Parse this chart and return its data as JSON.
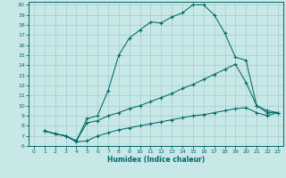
{
  "xlabel": "Humidex (Indice chaleur)",
  "background_color": "#c8e8e8",
  "grid_color": "#aacece",
  "line_color": "#006868",
  "xlim": [
    -0.5,
    23.5
  ],
  "ylim": [
    6,
    20.3
  ],
  "xticks": [
    0,
    1,
    2,
    3,
    4,
    5,
    6,
    7,
    8,
    9,
    10,
    11,
    12,
    13,
    14,
    15,
    16,
    17,
    18,
    19,
    20,
    21,
    22,
    23
  ],
  "yticks": [
    6,
    7,
    8,
    9,
    10,
    11,
    12,
    13,
    14,
    15,
    16,
    17,
    18,
    19,
    20
  ],
  "line1_x": [
    1,
    2,
    3,
    4,
    5,
    6,
    7,
    8,
    9,
    10,
    11,
    12,
    13,
    14,
    15,
    16,
    17,
    18,
    19,
    20,
    21,
    22,
    23
  ],
  "line1_y": [
    7.5,
    7.2,
    7.0,
    6.5,
    8.7,
    9.0,
    11.5,
    15.0,
    16.7,
    17.5,
    18.3,
    18.2,
    18.8,
    19.2,
    20.0,
    20.0,
    19.0,
    17.2,
    14.8,
    14.5,
    10.0,
    9.5,
    9.3
  ],
  "line2_x": [
    1,
    2,
    3,
    4,
    5,
    6,
    7,
    8,
    9,
    10,
    11,
    12,
    13,
    14,
    15,
    16,
    17,
    18,
    19,
    20,
    21,
    22,
    23
  ],
  "line2_y": [
    7.5,
    7.2,
    7.0,
    6.5,
    8.3,
    8.5,
    9.0,
    9.3,
    9.7,
    10.0,
    10.4,
    10.8,
    11.2,
    11.7,
    12.1,
    12.6,
    13.1,
    13.6,
    14.1,
    12.3,
    10.0,
    9.3,
    9.3
  ],
  "line3_x": [
    1,
    2,
    3,
    4,
    5,
    6,
    7,
    8,
    9,
    10,
    11,
    12,
    13,
    14,
    15,
    16,
    17,
    18,
    19,
    20,
    21,
    22,
    23
  ],
  "line3_y": [
    7.5,
    7.2,
    7.0,
    6.4,
    6.5,
    7.0,
    7.3,
    7.6,
    7.8,
    8.0,
    8.2,
    8.4,
    8.6,
    8.8,
    9.0,
    9.1,
    9.3,
    9.5,
    9.7,
    9.8,
    9.3,
    9.0,
    9.3
  ]
}
